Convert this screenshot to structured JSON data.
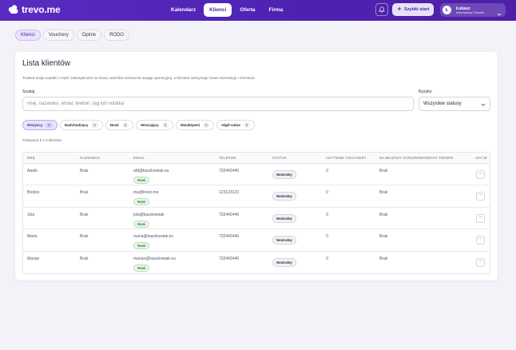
{
  "header": {
    "logo_text": "trevo.me",
    "nav": [
      "Kalendarz",
      "Klienci",
      "Oferta",
      "Firma"
    ],
    "active_nav": "Klienci",
    "quick_start": "Szybki start",
    "user": {
      "initial": "Ł",
      "name": "Łukasz",
      "subtitle": "Impressivey Pazurek"
    }
  },
  "subtabs": [
    "Klienci",
    "Vouchery",
    "Opinie",
    "RODO"
  ],
  "card": {
    "title": "Lista klientów",
    "description": "Trusted omija zadatki i część zabezpieczeń no-show, watchlist wzmacnia uwagę operacyjną, a blocked zatrzymuje nowe rezerwacje i checkout.",
    "search_label": "Szukaj",
    "search_placeholder": "Imię, nazwisko, email, telefon, tag lub notatka",
    "risk_label": "Ryzyko",
    "risk_value": "Wszystkie statusy",
    "chips": [
      {
        "label": "Wszyscy",
        "count": "5"
      },
      {
        "label": "Nadchodzący",
        "count": "0"
      },
      {
        "label": "Nowi",
        "count": "5"
      },
      {
        "label": "Wracający",
        "count": "0"
      },
      {
        "label": "Nieaktywni",
        "count": "0"
      },
      {
        "label": "High-value",
        "count": "0"
      }
    ],
    "shown_text": "Pokazano 5 z 5 klientów"
  },
  "table": {
    "headers": [
      "IMIĘ",
      "NAZWISKO",
      "EMAIL",
      "TELEFON",
      "STATUS",
      "AKTYWNE VOUCHERY",
      "NAJBLIŻSZY ZAREZERWOWANY TERMIN",
      "AKCJE"
    ],
    "new_badge": "Nowi",
    "status_badge": "Neutralny",
    "action_label": "···",
    "rows": [
      {
        "first": "Aaafs",
        "last": "Brak",
        "email": "afd@kaszkowiak.eu",
        "phone": "732442446",
        "vouchers": "0",
        "next": "Brak"
      },
      {
        "first": "Bodzio",
        "last": "Brak",
        "email": "ma@trevo.me",
        "phone": "123123123",
        "vouchers": "0",
        "next": "Brak"
      },
      {
        "first": "Jola",
        "last": "Brak",
        "email": "jola@kaszkowiak",
        "phone": "732442446",
        "vouchers": "0",
        "next": "Brak"
      },
      {
        "first": "Maria",
        "last": "Brak",
        "email": "maria@kaszkowiak.eu",
        "phone": "732442446",
        "vouchers": "0",
        "next": "Brak"
      },
      {
        "first": "Marian",
        "last": "Brak",
        "email": "marian@kaszkowiak.eu",
        "phone": "732442446",
        "vouchers": "0",
        "next": "Brak"
      }
    ]
  }
}
